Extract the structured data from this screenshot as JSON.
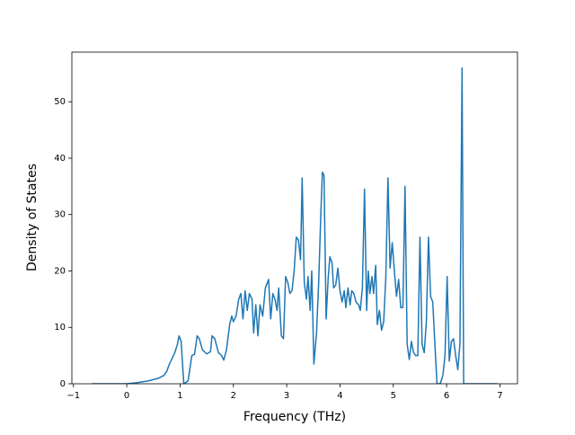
{
  "chart_data": {
    "type": "line",
    "xlabel": "Frequency (THz)",
    "ylabel": "Density of States",
    "color": "#1f77b4",
    "xlim": [
      -1.03,
      7.33
    ],
    "ylim": [
      0,
      58.8
    ],
    "xticks": [
      {
        "value": -1,
        "label": "−1"
      },
      0,
      1,
      2,
      3,
      4,
      5,
      6,
      7
    ],
    "yticks": [
      0,
      10,
      20,
      30,
      40,
      50
    ],
    "x": [
      -0.65,
      0,
      0.2,
      0.4,
      0.6,
      0.7,
      0.75,
      0.8,
      0.85,
      0.9,
      0.95,
      0.98,
      1.02,
      1.07,
      1.15,
      1.22,
      1.27,
      1.32,
      1.36,
      1.42,
      1.5,
      1.57,
      1.6,
      1.65,
      1.72,
      1.78,
      1.82,
      1.87,
      1.93,
      1.97,
      2.0,
      2.05,
      2.1,
      2.14,
      2.18,
      2.22,
      2.26,
      2.3,
      2.35,
      2.38,
      2.42,
      2.46,
      2.5,
      2.55,
      2.6,
      2.66,
      2.7,
      2.74,
      2.78,
      2.82,
      2.85,
      2.9,
      2.94,
      2.98,
      3.02,
      3.06,
      3.1,
      3.14,
      3.18,
      3.22,
      3.26,
      3.29,
      3.33,
      3.37,
      3.4,
      3.44,
      3.47,
      3.51,
      3.56,
      3.6,
      3.64,
      3.67,
      3.7,
      3.74,
      3.78,
      3.81,
      3.85,
      3.88,
      3.92,
      3.96,
      4.0,
      4.04,
      4.08,
      4.11,
      4.15,
      4.19,
      4.22,
      4.26,
      4.3,
      4.35,
      4.38,
      4.42,
      4.46,
      4.5,
      4.53,
      4.56,
      4.6,
      4.63,
      4.67,
      4.7,
      4.74,
      4.78,
      4.82,
      4.86,
      4.9,
      4.94,
      4.98,
      5.02,
      5.06,
      5.1,
      5.14,
      5.18,
      5.22,
      5.26,
      5.3,
      5.34,
      5.38,
      5.42,
      5.46,
      5.5,
      5.54,
      5.58,
      5.62,
      5.66,
      5.7,
      5.74,
      5.78,
      5.82,
      5.88,
      5.93,
      5.97,
      6.01,
      6.05,
      6.09,
      6.13,
      6.17,
      6.21,
      6.25,
      6.29,
      6.32,
      6.95
    ],
    "values": [
      0,
      0,
      0.2,
      0.5,
      1.0,
      1.5,
      2.2,
      3.5,
      4.5,
      5.5,
      7,
      8.5,
      7.5,
      0,
      0.5,
      5,
      5.2,
      8.5,
      8,
      6,
      5.3,
      5.7,
      8.5,
      8,
      5.5,
      5,
      4.2,
      6,
      10.5,
      12,
      11,
      12,
      15,
      16,
      11.5,
      16.5,
      13,
      16,
      15,
      9,
      14,
      8.5,
      14,
      12,
      17,
      18.5,
      11.5,
      16,
      15,
      13,
      17,
      8.5,
      8,
      19,
      18,
      16,
      16.5,
      20,
      26,
      25.5,
      22,
      36.5,
      18,
      15,
      19,
      13,
      20,
      3.5,
      9,
      18,
      30,
      37.5,
      37,
      11.5,
      19,
      22.5,
      21.5,
      17,
      17.5,
      20.5,
      16.5,
      14.5,
      16.5,
      13.5,
      17,
      14,
      16.5,
      16,
      14.5,
      14,
      13,
      17,
      34.5,
      13,
      20,
      16,
      19,
      16,
      21,
      10.5,
      13,
      9.5,
      11,
      19,
      36.5,
      20.5,
      25,
      20,
      15.5,
      18.5,
      13.5,
      13.5,
      35,
      7,
      4.3,
      7.5,
      5.5,
      5,
      5,
      26,
      7,
      5.5,
      11,
      26,
      15.5,
      14.5,
      7,
      0,
      0,
      1.5,
      5,
      19,
      4,
      7.5,
      8,
      5,
      2.5,
      7,
      56,
      0,
      0
    ]
  }
}
